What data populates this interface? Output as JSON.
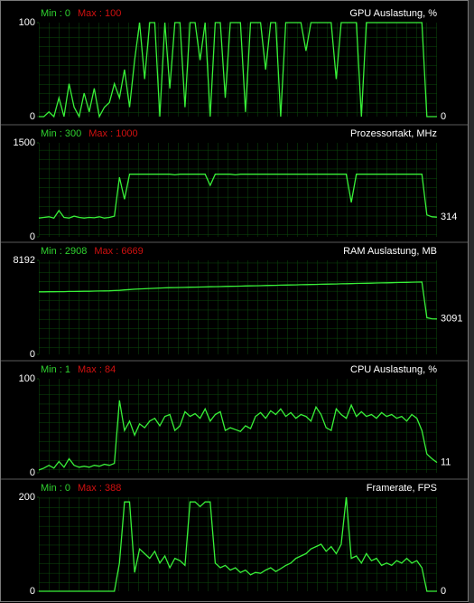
{
  "chart_data": [
    {
      "type": "line",
      "title": "GPU Auslastung, %",
      "min_label": "Min : 0",
      "max_label": "Max : 100",
      "ylim": [
        0,
        100
      ],
      "yticks": [
        0,
        100
      ],
      "color": "#38f038",
      "values": [
        0,
        0,
        5,
        0,
        20,
        0,
        35,
        10,
        0,
        25,
        5,
        30,
        0,
        10,
        15,
        35,
        20,
        50,
        10,
        60,
        100,
        40,
        100,
        100,
        0,
        100,
        30,
        100,
        100,
        10,
        100,
        100,
        60,
        100,
        0,
        100,
        100,
        20,
        100,
        100,
        100,
        5,
        100,
        100,
        100,
        50,
        100,
        100,
        0,
        100,
        100,
        100,
        100,
        70,
        100,
        100,
        100,
        100,
        100,
        40,
        100,
        100,
        100,
        100,
        0,
        100,
        100,
        100,
        100,
        100,
        100,
        100,
        100,
        100,
        100,
        100,
        100,
        0,
        0,
        0
      ]
    },
    {
      "type": "line",
      "title": "Prozessortakt, MHz",
      "min_label": "Min : 300",
      "max_label": "Max : 1000",
      "ylim": [
        0,
        1500
      ],
      "yticks": [
        0,
        1500
      ],
      "color": "#38f038",
      "values": [
        300,
        310,
        320,
        300,
        420,
        310,
        300,
        330,
        310,
        300,
        310,
        305,
        320,
        300,
        310,
        330,
        950,
        600,
        1000,
        1000,
        1000,
        1000,
        1000,
        1000,
        1000,
        1000,
        1000,
        990,
        1000,
        1000,
        1000,
        1000,
        1000,
        1000,
        820,
        1000,
        1000,
        1000,
        1000,
        990,
        1000,
        1000,
        1000,
        1000,
        1000,
        1000,
        1000,
        1000,
        1000,
        1000,
        1000,
        1000,
        1000,
        1000,
        1000,
        1000,
        1000,
        1000,
        1000,
        1000,
        1000,
        1000,
        550,
        1000,
        1000,
        1000,
        1000,
        1000,
        1000,
        1000,
        1000,
        1000,
        1000,
        1000,
        1000,
        1000,
        1000,
        350,
        320,
        314
      ]
    },
    {
      "type": "line",
      "title": "RAM Auslastung, MB",
      "min_label": "Min : 2908",
      "max_label": "Max : 6669",
      "ylim": [
        0,
        8192
      ],
      "yticks": [
        0,
        8192
      ],
      "color": "#38f038",
      "values": [
        5450,
        5450,
        5460,
        5460,
        5470,
        5470,
        5480,
        5480,
        5490,
        5500,
        5500,
        5510,
        5520,
        5530,
        5540,
        5560,
        5580,
        5620,
        5650,
        5680,
        5700,
        5720,
        5740,
        5760,
        5780,
        5800,
        5810,
        5820,
        5830,
        5840,
        5850,
        5860,
        5870,
        5880,
        5890,
        5900,
        5910,
        5920,
        5930,
        5940,
        5950,
        5960,
        5970,
        5980,
        5990,
        6000,
        6010,
        6020,
        6030,
        6040,
        6050,
        6060,
        6070,
        6080,
        6090,
        6100,
        6110,
        6120,
        6130,
        6140,
        6150,
        6160,
        6170,
        6180,
        6190,
        6200,
        6210,
        6220,
        6230,
        6240,
        6250,
        6260,
        6270,
        6280,
        6290,
        6300,
        6310,
        3200,
        3100,
        3091
      ]
    },
    {
      "type": "line",
      "title": "CPU Auslastung, %",
      "min_label": "Min : 1",
      "max_label": "Max : 84",
      "ylim": [
        0,
        100
      ],
      "yticks": [
        0,
        100
      ],
      "color": "#38f038",
      "values": [
        3,
        5,
        8,
        5,
        12,
        6,
        15,
        8,
        6,
        7,
        6,
        8,
        7,
        9,
        8,
        10,
        77,
        45,
        55,
        40,
        52,
        48,
        55,
        58,
        50,
        60,
        62,
        45,
        50,
        65,
        60,
        63,
        58,
        68,
        55,
        62,
        65,
        45,
        48,
        46,
        44,
        50,
        47,
        60,
        64,
        58,
        66,
        62,
        68,
        60,
        64,
        58,
        62,
        60,
        55,
        70,
        62,
        48,
        45,
        68,
        62,
        58,
        72,
        60,
        65,
        60,
        62,
        58,
        64,
        60,
        62,
        58,
        60,
        55,
        62,
        58,
        45,
        20,
        15,
        11
      ]
    },
    {
      "type": "line",
      "title": "Framerate, FPS",
      "min_label": "Min : 0",
      "max_label": "Max : 388",
      "ylim": [
        0,
        200
      ],
      "yticks": [
        0,
        200
      ],
      "color": "#38f038",
      "values": [
        0,
        0,
        0,
        0,
        0,
        0,
        0,
        0,
        0,
        0,
        0,
        0,
        0,
        0,
        0,
        0,
        60,
        190,
        190,
        40,
        90,
        80,
        70,
        85,
        60,
        75,
        50,
        70,
        65,
        55,
        190,
        190,
        180,
        190,
        190,
        60,
        50,
        55,
        45,
        50,
        40,
        45,
        35,
        40,
        38,
        45,
        50,
        42,
        48,
        55,
        60,
        70,
        75,
        80,
        90,
        95,
        100,
        85,
        95,
        80,
        100,
        200,
        70,
        75,
        60,
        80,
        65,
        70,
        55,
        60,
        55,
        65,
        60,
        70,
        60,
        65,
        50,
        0,
        0,
        0
      ]
    }
  ]
}
